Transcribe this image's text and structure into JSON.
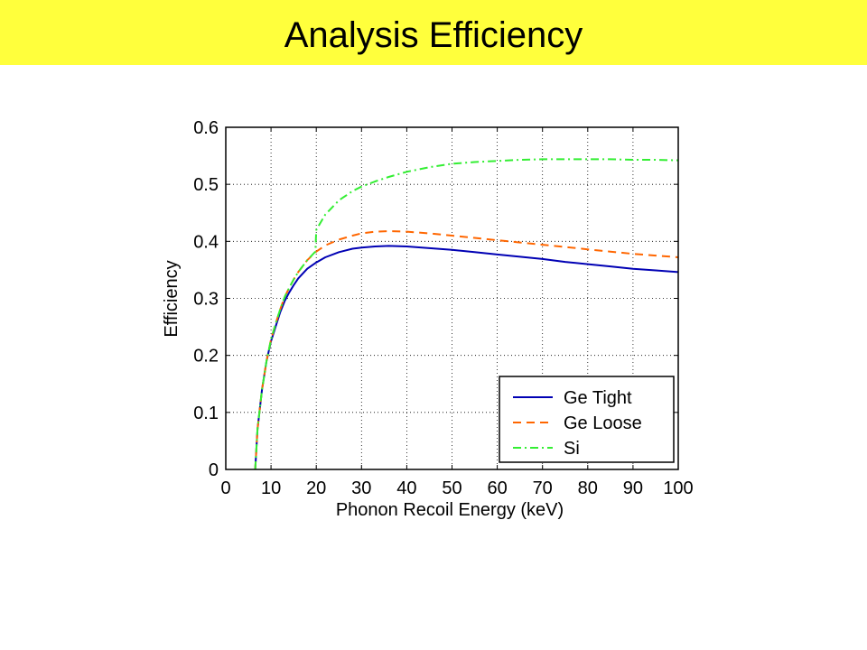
{
  "slide": {
    "title": "Analysis Efficiency",
    "title_bar_color": "#ffff3c"
  },
  "chart_data": {
    "type": "line",
    "title": "",
    "xlabel": "Phonon Recoil Energy (keV)",
    "ylabel": "Efficiency",
    "xlim": [
      0,
      100
    ],
    "ylim": [
      0,
      0.6
    ],
    "xticks": [
      0,
      10,
      20,
      30,
      40,
      50,
      60,
      70,
      80,
      90,
      100
    ],
    "xtick_labels": [
      "0",
      "10",
      "20",
      "30",
      "40",
      "50",
      "60",
      "70",
      "80",
      "90",
      "100"
    ],
    "yticks": [
      0,
      0.1,
      0.2,
      0.3,
      0.4,
      0.5,
      0.6
    ],
    "ytick_labels": [
      "0",
      "0.1",
      "0.2",
      "0.3",
      "0.4",
      "0.5",
      "0.6"
    ],
    "grid": true,
    "legend_position": "bottom-right",
    "series": [
      {
        "name": "Ge Tight",
        "color": "#0000b4",
        "style": "solid",
        "x": [
          6.5,
          7,
          8,
          9,
          10,
          11,
          12,
          13,
          14,
          15,
          16,
          18,
          20,
          22,
          25,
          28,
          30,
          33,
          36,
          40,
          45,
          50,
          55,
          60,
          65,
          70,
          75,
          80,
          85,
          90,
          95,
          100
        ],
        "y": [
          0.0,
          0.07,
          0.14,
          0.19,
          0.225,
          0.25,
          0.275,
          0.295,
          0.31,
          0.323,
          0.335,
          0.352,
          0.363,
          0.372,
          0.381,
          0.387,
          0.389,
          0.391,
          0.392,
          0.391,
          0.388,
          0.385,
          0.381,
          0.377,
          0.373,
          0.369,
          0.364,
          0.36,
          0.356,
          0.352,
          0.349,
          0.346
        ]
      },
      {
        "name": "Ge Loose",
        "color": "#ff6600",
        "style": "dashed",
        "x": [
          6.5,
          7,
          8,
          9,
          10,
          11,
          12,
          13,
          14,
          15,
          16,
          18,
          20,
          22,
          25,
          28,
          30,
          33,
          36,
          40,
          45,
          50,
          55,
          60,
          65,
          70,
          75,
          80,
          85,
          90,
          95,
          100
        ],
        "y": [
          0.0,
          0.07,
          0.14,
          0.19,
          0.228,
          0.255,
          0.28,
          0.302,
          0.318,
          0.333,
          0.346,
          0.367,
          0.382,
          0.393,
          0.403,
          0.41,
          0.414,
          0.417,
          0.418,
          0.417,
          0.414,
          0.41,
          0.406,
          0.402,
          0.398,
          0.394,
          0.39,
          0.386,
          0.382,
          0.378,
          0.375,
          0.372
        ]
      },
      {
        "name": "Si",
        "color": "#33ee33",
        "style": "dashdot",
        "x": [
          6.5,
          7,
          8,
          9,
          10,
          11,
          12,
          13,
          14,
          15,
          16,
          18,
          19.8,
          20,
          22,
          25,
          28,
          30,
          33,
          36,
          40,
          45,
          50,
          55,
          60,
          65,
          70,
          75,
          80,
          85,
          90,
          95,
          100
        ],
        "y": [
          0.0,
          0.07,
          0.14,
          0.19,
          0.228,
          0.255,
          0.28,
          0.302,
          0.318,
          0.333,
          0.346,
          0.367,
          0.382,
          0.42,
          0.447,
          0.472,
          0.488,
          0.496,
          0.505,
          0.513,
          0.522,
          0.53,
          0.536,
          0.539,
          0.541,
          0.543,
          0.544,
          0.544,
          0.544,
          0.544,
          0.543,
          0.543,
          0.542
        ]
      }
    ]
  }
}
